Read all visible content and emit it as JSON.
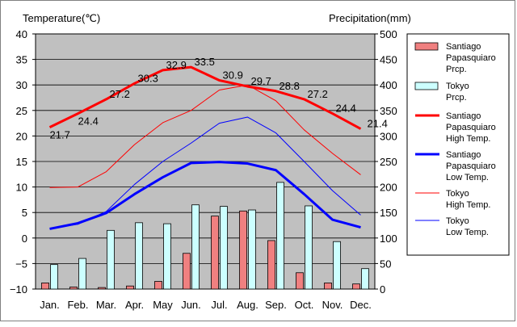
{
  "chart_data": {
    "type": "bar+line",
    "categories": [
      "Jan.",
      "Feb.",
      "Mar.",
      "Apr.",
      "May",
      "Jun.",
      "Jul.",
      "Aug.",
      "Sep.",
      "Oct.",
      "Nov.",
      "Dec."
    ],
    "left_axis": {
      "title": "Temperature(℃)",
      "ylim": [
        -10,
        40
      ],
      "ticks": [
        "40",
        "35",
        "30",
        "25",
        "20",
        "15",
        "10",
        "5",
        "0",
        "−5",
        "−10"
      ]
    },
    "right_axis": {
      "title": "Precipitation(mm)",
      "ylim": [
        0,
        500
      ],
      "ticks": [
        "500",
        "450",
        "400",
        "350",
        "300",
        "250",
        "200",
        "150",
        "100",
        "50",
        "0"
      ]
    },
    "bar_series": [
      {
        "name": "Santiago Papasquiaro Prcp.",
        "legend_lines": [
          "Santiago",
          "Papasquiaro",
          "Prcp."
        ],
        "color": "#f08080",
        "values": [
          12,
          4,
          3,
          6,
          15,
          70,
          143,
          153,
          95,
          32,
          12,
          10
        ]
      },
      {
        "name": "Tokyo Prcp.",
        "legend_lines": [
          "Tokyo",
          "Prcp."
        ],
        "color": "#ccffff",
        "values": [
          48,
          60,
          115,
          130,
          128,
          165,
          162,
          155,
          209,
          163,
          93,
          40
        ]
      }
    ],
    "line_series": [
      {
        "name": "Santiago Papasquiaro High Temp.",
        "legend_lines": [
          "Santiago",
          "Papasquiaro",
          "High Temp."
        ],
        "color": "#ff0000",
        "width": 3,
        "values": [
          21.7,
          24.4,
          27.2,
          30.3,
          32.9,
          33.5,
          30.9,
          29.7,
          28.8,
          27.2,
          24.4,
          21.4
        ],
        "labels": [
          "21.7",
          "24.4",
          "27.2",
          "30.3",
          "32.9",
          "33.5",
          "30.9",
          "29.7",
          "28.8",
          "27.2",
          "24.4",
          "21.4"
        ]
      },
      {
        "name": "Santiago Papasquiaro Low Temp.",
        "legend_lines": [
          "Santiago",
          "Papasquiaro",
          "Low Temp."
        ],
        "color": "#0000ff",
        "width": 3,
        "values": [
          1.8,
          2.9,
          4.9,
          8.6,
          11.9,
          14.7,
          14.9,
          14.6,
          13.3,
          8.6,
          3.6,
          2.1
        ]
      },
      {
        "name": "Tokyo High Temp.",
        "legend_lines": [
          "Tokyo",
          "High Temp."
        ],
        "color": "#ff0000",
        "width": 1,
        "values": [
          9.9,
          10.0,
          13.0,
          18.3,
          22.6,
          25.0,
          29.0,
          30.0,
          26.9,
          21.2,
          16.6,
          12.4
        ]
      },
      {
        "name": "Tokyo Low Temp.",
        "legend_lines": [
          "Tokyo",
          "Low Temp."
        ],
        "color": "#0000ff",
        "width": 1,
        "values": [
          1.9,
          2.7,
          5.2,
          10.5,
          15.0,
          18.6,
          22.5,
          23.7,
          20.6,
          15.0,
          9.3,
          4.5
        ]
      }
    ],
    "grid": "horizontal",
    "legend_position": "right"
  }
}
